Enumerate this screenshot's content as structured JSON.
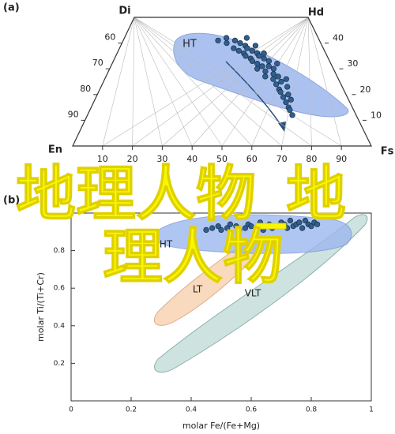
{
  "chart_data": [
    {
      "type": "pyroxene",
      "panel_label": "(a)",
      "corners": {
        "top_left": "Di",
        "top_right": "Hd",
        "bottom_left": "En",
        "bottom_right": "Fs"
      },
      "xlim": [
        0,
        100
      ],
      "ylim": [
        0,
        50
      ],
      "xticks": [
        10,
        20,
        30,
        40,
        50,
        60,
        70,
        80,
        90
      ],
      "left_ticks": [
        60,
        70,
        80,
        90
      ],
      "right_ticks": [
        40,
        30,
        20,
        10
      ],
      "field_labels": [
        "HT"
      ],
      "color": "#2f5f8f",
      "x": [
        28,
        30,
        31,
        33,
        34,
        35,
        36,
        37,
        38,
        38,
        39,
        40,
        41,
        42,
        42,
        43,
        44,
        45,
        45,
        46,
        47,
        48,
        48,
        49,
        50,
        51,
        52,
        53,
        54,
        55,
        56,
        57,
        58,
        59,
        60,
        61,
        62,
        63,
        64,
        66,
        36,
        40,
        44,
        50,
        56
      ],
      "y": [
        41,
        42,
        40,
        41,
        38,
        40,
        37,
        39,
        36,
        38,
        35,
        37,
        34,
        36,
        33,
        35,
        32,
        34,
        30,
        31,
        33,
        29,
        31,
        27,
        30,
        28,
        26,
        27,
        24,
        25,
        22,
        21,
        23,
        19,
        20,
        17,
        18,
        15,
        14,
        12,
        42,
        39,
        36,
        32,
        26
      ]
    },
    {
      "type": "scatter",
      "panel_label": "(b)",
      "xlabel": "molar Fe/(Fe+Mg)",
      "ylabel": "molar Ti/(Ti+Cr)",
      "xlim": [
        0,
        1
      ],
      "ylim": [
        0,
        1
      ],
      "xticks": [
        0,
        0.2,
        0.4,
        0.6,
        0.8,
        1
      ],
      "yticks": [
        0.2,
        0.4,
        0.6,
        0.8
      ],
      "field_labels": [
        "HT",
        "LT",
        "VLT"
      ],
      "color": "#2f5f8f",
      "x": [
        0.45,
        0.47,
        0.49,
        0.5,
        0.52,
        0.53,
        0.55,
        0.56,
        0.58,
        0.59,
        0.6,
        0.62,
        0.63,
        0.64,
        0.66,
        0.67,
        0.68,
        0.7,
        0.71,
        0.72,
        0.73,
        0.74,
        0.75,
        0.76,
        0.77,
        0.78,
        0.79,
        0.8,
        0.81,
        0.82
      ],
      "y": [
        0.91,
        0.92,
        0.93,
        0.91,
        0.92,
        0.94,
        0.93,
        0.91,
        0.92,
        0.94,
        0.93,
        0.92,
        0.95,
        0.91,
        0.94,
        0.92,
        0.93,
        0.95,
        0.94,
        0.92,
        0.96,
        0.93,
        0.94,
        0.95,
        0.92,
        0.96,
        0.94,
        0.93,
        0.95,
        0.94
      ]
    }
  ],
  "overlay_text": [
    "地理人物_地",
    "理人物"
  ]
}
